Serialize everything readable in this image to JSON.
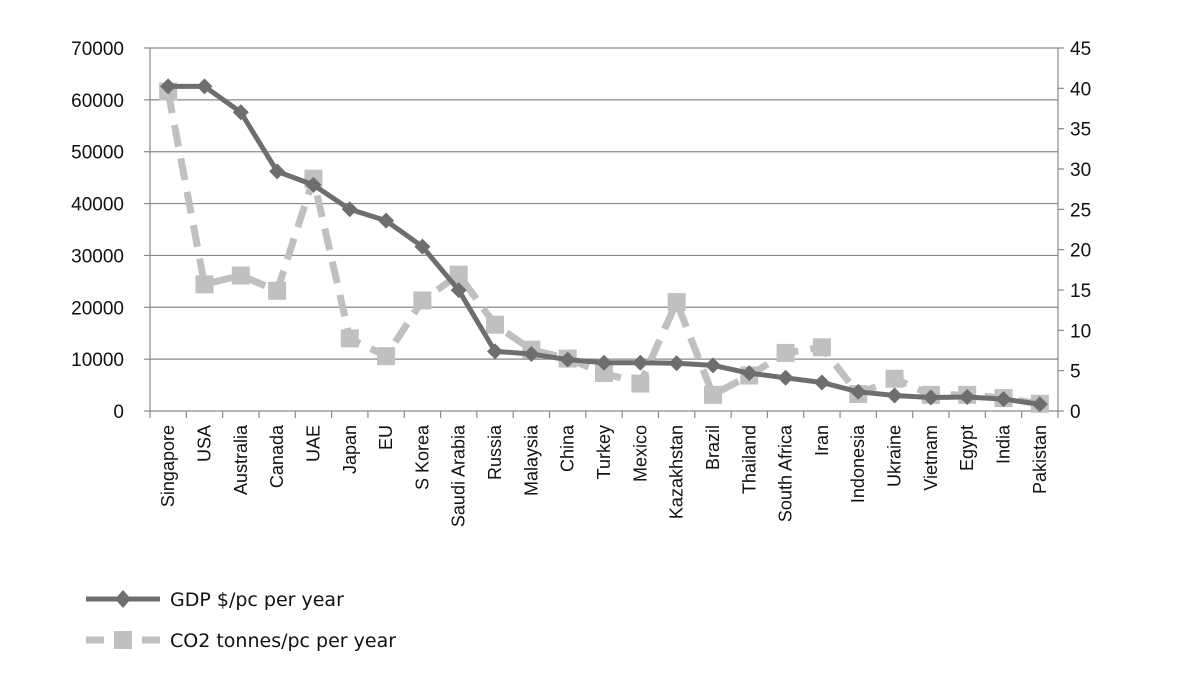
{
  "chart_data": {
    "type": "line",
    "title": "",
    "xlabel": "",
    "ylabel": "",
    "y2label": "",
    "categories": [
      "Singapore",
      "USA",
      "Australia",
      "Canada",
      "UAE",
      "Japan",
      "EU",
      "S Korea",
      "Saudi Arabia",
      "Russia",
      "Malaysia",
      "China",
      "Turkey",
      "Mexico",
      "Kazakhstan",
      "Brazil",
      "Thailand",
      "South Africa",
      "Iran",
      "Indonesia",
      "Ukraine",
      "Vietnam",
      "Egypt",
      "India",
      "Pakistan"
    ],
    "ylim": [
      0,
      70000
    ],
    "yticks": [
      "0",
      "10000",
      "20000",
      "30000",
      "40000",
      "50000",
      "60000",
      "70000"
    ],
    "y2lim": [
      0,
      45
    ],
    "y2ticks": [
      "0",
      "5",
      "10",
      "15",
      "20",
      "25",
      "30",
      "35",
      "40",
      "45"
    ],
    "grid": true,
    "legend": "bottom-left",
    "series": [
      {
        "name": "GDP $/pc per year",
        "axis": "left",
        "color": "#6e6e6e",
        "style": "solid",
        "marker": "diamond",
        "values": [
          62600,
          62600,
          57600,
          46200,
          43600,
          38900,
          36700,
          31700,
          23300,
          11500,
          11000,
          9900,
          9300,
          9300,
          9200,
          8800,
          7300,
          6400,
          5500,
          3700,
          3000,
          2600,
          2700,
          2300,
          1300
        ]
      },
      {
        "name": "CO2 tonnes/pc per year",
        "axis": "right",
        "color": "#c0c0c0",
        "style": "dashed",
        "marker": "square",
        "values": [
          39.6,
          15.7,
          16.8,
          14.9,
          28.8,
          9.0,
          6.8,
          13.7,
          16.9,
          10.7,
          7.6,
          6.5,
          4.7,
          3.4,
          13.5,
          2.0,
          4.4,
          7.2,
          7.9,
          2.1,
          4.0,
          2.0,
          2.0,
          1.6,
          0.9
        ]
      }
    ]
  }
}
